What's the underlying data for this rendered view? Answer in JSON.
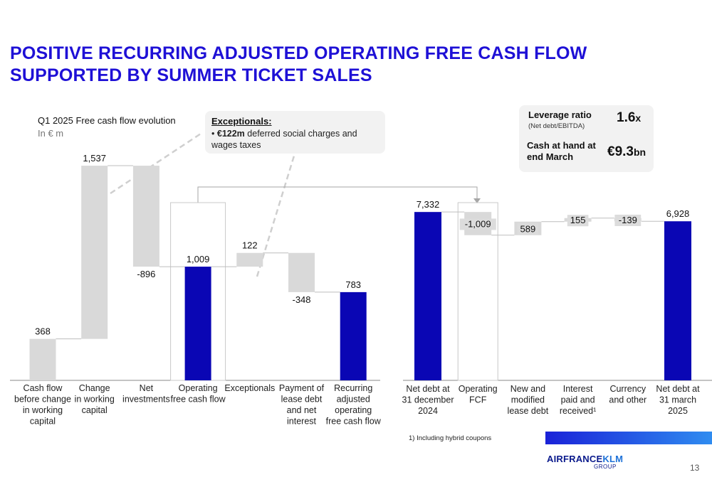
{
  "title": "POSITIVE RECURRING ADJUSTED OPERATING FREE CASH FLOW SUPPORTED BY SUMMER TICKET SALES",
  "subtitle": "Q1 2025 Free cash flow evolution",
  "unit": "In € m",
  "callout": {
    "title": "Exceptionals:",
    "bullet": "•",
    "amount": "€122m",
    "text": " deferred social charges and wages taxes"
  },
  "kpi": {
    "leverage_label": "Leverage ratio",
    "leverage_sub": "(Net debt/EBITDA)",
    "leverage_value": "1.6",
    "leverage_unit": "x",
    "cash_label_1": "Cash at hand  at",
    "cash_label_2": "end March",
    "cash_value": "€9.3",
    "cash_unit": "bn"
  },
  "chart_data": [
    {
      "type": "bar",
      "title": "Q1 2025 Free cash flow evolution",
      "unit": "In € m",
      "chart_style": "waterfall",
      "categories": [
        [
          "Cash flow",
          "before change",
          "in working",
          "capital"
        ],
        [
          "Change",
          "in working",
          "capital"
        ],
        [
          "Net",
          "investments"
        ],
        [
          "Operating",
          "free cash flow"
        ],
        [
          "Exceptionals"
        ],
        [
          "Payment of",
          "lease debt",
          "and net",
          "interest"
        ],
        [
          "Recurring",
          "adjusted",
          "operating",
          "free cash flow"
        ]
      ],
      "values": [
        368,
        1537,
        -896,
        1009,
        122,
        -348,
        783
      ],
      "labels": [
        "368",
        "1,537",
        "-896",
        "1,009",
        "122",
        "-348",
        "783"
      ],
      "bar_kinds": [
        "increment",
        "increment",
        "increment",
        "total",
        "increment",
        "increment",
        "total"
      ],
      "highlighted_category": "Operating free cash flow",
      "colors": {
        "total": "#0a06b4",
        "increment": "#d9d9d9"
      }
    },
    {
      "type": "bar",
      "chart_style": "waterfall",
      "categories": [
        [
          "Net debt at",
          "31 december",
          "2024"
        ],
        [
          "Operating",
          "FCF"
        ],
        [
          "New and",
          "modified",
          "lease debt"
        ],
        [
          "Interest",
          "paid and",
          "received¹"
        ],
        [
          "Currency",
          "and other"
        ],
        [
          "Net debt at",
          "31 march",
          "2025"
        ]
      ],
      "values": [
        7332,
        -1009,
        589,
        155,
        -139,
        6928
      ],
      "labels": [
        "7,332",
        "-1,009",
        "589",
        "155",
        "-139",
        "6,928"
      ],
      "bar_kinds": [
        "total",
        "increment",
        "increment",
        "increment",
        "increment",
        "total"
      ],
      "highlighted_category": "Operating FCF",
      "colors": {
        "total": "#0a06b4",
        "increment": "#d9d9d9"
      }
    }
  ],
  "footnote": "1) Including hybrid coupons",
  "logo": {
    "part1": "AIRFRANCE",
    "part2": "KLM",
    "sub": "GROUP"
  },
  "page_number": "13"
}
